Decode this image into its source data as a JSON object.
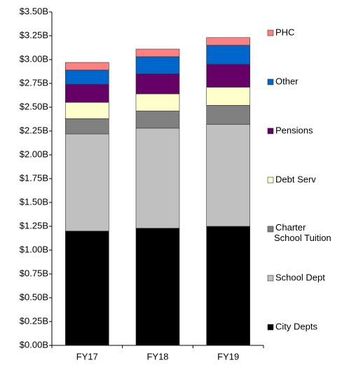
{
  "chart_data": {
    "type": "stacked_bar",
    "categories": [
      "FY17",
      "FY18",
      "FY19"
    ],
    "series": [
      {
        "name": "City Depts",
        "color": "#000000",
        "values": [
          1.2,
          1.23,
          1.25
        ]
      },
      {
        "name": "School Dept",
        "color": "#c0c0c0",
        "values": [
          1.02,
          1.05,
          1.07
        ]
      },
      {
        "name": "Charter School Tuition",
        "color": "#808080",
        "values": [
          0.16,
          0.18,
          0.2
        ]
      },
      {
        "name": "Debt Serv",
        "color": "#ffffcc",
        "values": [
          0.17,
          0.18,
          0.19
        ]
      },
      {
        "name": "Pensions",
        "color": "#660066",
        "values": [
          0.19,
          0.21,
          0.24
        ]
      },
      {
        "name": "Other",
        "color": "#0066cc",
        "values": [
          0.15,
          0.18,
          0.2
        ]
      },
      {
        "name": "PHC",
        "color": "#ff8080",
        "values": [
          0.08,
          0.08,
          0.08
        ]
      }
    ],
    "ylim": [
      0,
      3.5
    ],
    "yticks": [
      {
        "value": 0,
        "label": "$0.00B"
      },
      {
        "value": 0.25,
        "label": "$0.25B"
      },
      {
        "value": 0.5,
        "label": "$0.50B"
      },
      {
        "value": 0.75,
        "label": "$0.75B"
      },
      {
        "value": 1.0,
        "label": "$1.00B"
      },
      {
        "value": 1.25,
        "label": "$1.25B"
      },
      {
        "value": 1.5,
        "label": "$1.50B"
      },
      {
        "value": 1.75,
        "label": "$1.75B"
      },
      {
        "value": 2.0,
        "label": "$2.00B"
      },
      {
        "value": 2.25,
        "label": "$2.25B"
      },
      {
        "value": 2.5,
        "label": "$2.50B"
      },
      {
        "value": 2.75,
        "label": "$2.75B"
      },
      {
        "value": 3.0,
        "label": "$3.00B"
      },
      {
        "value": 3.25,
        "label": "$3.25B"
      },
      {
        "value": 3.5,
        "label": "$3.50B"
      }
    ],
    "legend": "right"
  }
}
